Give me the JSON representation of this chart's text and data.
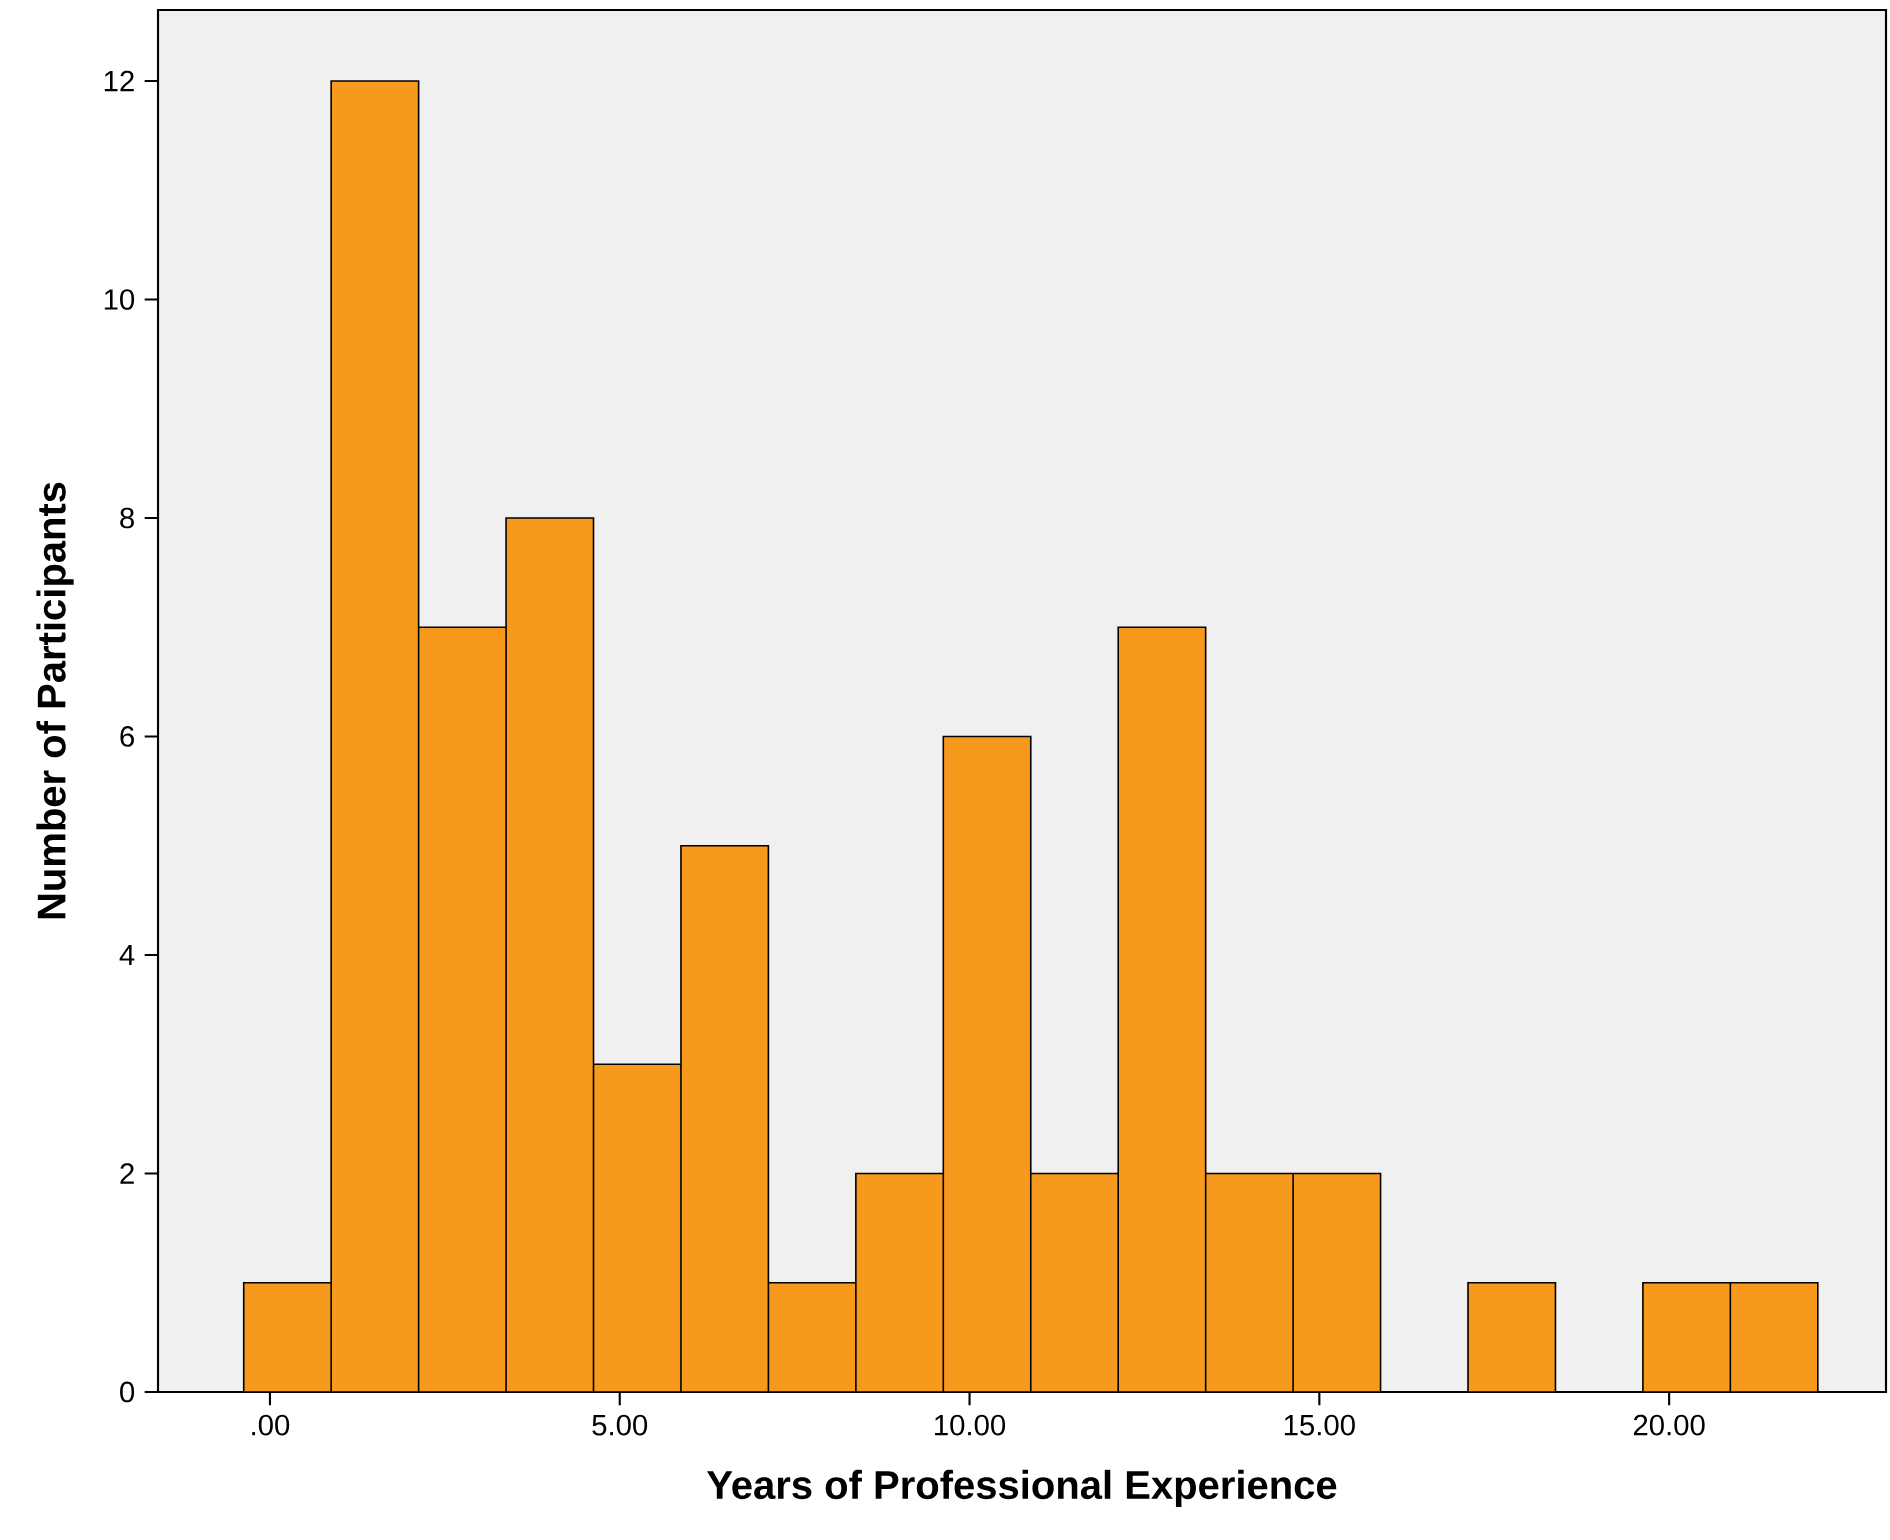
{
  "chart_data": {
    "type": "histogram",
    "xlabel": "Years of Professional Experience",
    "ylabel": "Number of Participants",
    "bins": [
      -0.375,
      0.875,
      2.125,
      3.375,
      4.625,
      5.875,
      7.125,
      8.375,
      9.625,
      10.875,
      12.125,
      13.375,
      14.625,
      15.875,
      17.125,
      18.375,
      19.625,
      20.875,
      22.125
    ],
    "values": [
      1,
      12,
      7,
      8,
      3,
      5,
      1,
      2,
      6,
      2,
      7,
      2,
      2,
      0,
      1,
      0,
      1,
      1
    ],
    "color": "#f7991c",
    "xlim": [
      -1.6,
      23.1
    ],
    "ylim": [
      0,
      12.65
    ],
    "xticks": [
      {
        "value": 0,
        "label": ".00"
      },
      {
        "value": 5,
        "label": "5.00"
      },
      {
        "value": 10,
        "label": "10.00"
      },
      {
        "value": 15,
        "label": "15.00"
      },
      {
        "value": 20,
        "label": "20.00"
      }
    ],
    "yticks": [
      0,
      2,
      4,
      6,
      8,
      10,
      12
    ],
    "grid": false
  }
}
